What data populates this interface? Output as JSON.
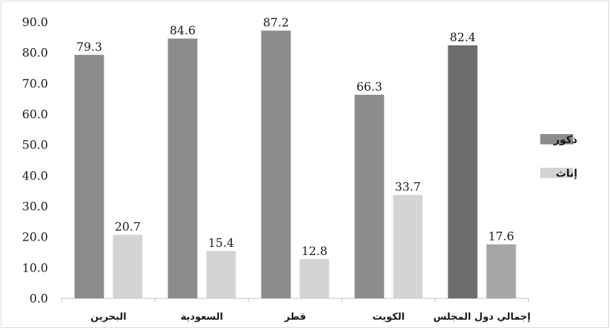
{
  "chart_data": {
    "type": "bar",
    "categories": [
      "البحرين",
      "السعودية",
      "قطر",
      "الكويت",
      "إجمالي دول المجلس"
    ],
    "series": [
      {
        "name": "ذكور",
        "values": [
          79.3,
          84.6,
          87.2,
          66.3,
          82.4
        ],
        "color": "#8c8c8e",
        "highlight_color": "#6d6d70"
      },
      {
        "name": "إناث",
        "values": [
          20.7,
          15.4,
          12.8,
          33.7,
          17.6
        ],
        "color": "#d4d4d5",
        "highlight_color": "#a7a7a9"
      }
    ],
    "highlight_category_index": 4,
    "yticks": [
      "0.0",
      "10.0",
      "20.0",
      "30.0",
      "40.0",
      "50.0",
      "60.0",
      "70.0",
      "80.0",
      "90.0"
    ],
    "ylim": [
      0,
      90
    ],
    "grid": false,
    "legend_position": "right",
    "title": "",
    "xlabel": "",
    "ylabel": ""
  }
}
